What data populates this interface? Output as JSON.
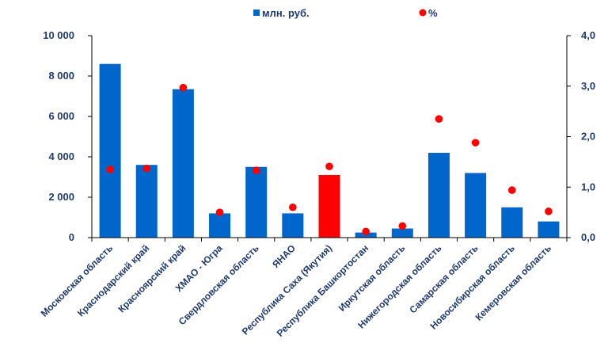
{
  "chart_data": {
    "type": "bar",
    "categories": [
      "Московская область",
      "Краснодарский край",
      "Красноярский край",
      "ХМАО - Югра",
      "Свердловская область",
      "ЯНАО",
      "Республика Саха (Якутия)",
      "Республика Башкортостан",
      "Иркутская область",
      "Нижегородская область",
      "Самарская область",
      "Новосибирская область",
      "Кемеровская область"
    ],
    "series": [
      {
        "name": "млн. руб.",
        "type": "bar",
        "axis": "left",
        "color": "#0066cc",
        "highlight_color": "#ff0000",
        "highlight_index": 6,
        "values": [
          8600,
          3600,
          7350,
          1200,
          3500,
          1200,
          3100,
          250,
          450,
          4200,
          3200,
          1500,
          800
        ]
      },
      {
        "name": "%",
        "type": "scatter",
        "axis": "right",
        "color": "#ff0000",
        "values": [
          1.35,
          1.37,
          2.97,
          0.5,
          1.33,
          0.6,
          1.41,
          0.12,
          0.23,
          2.35,
          1.88,
          0.94,
          0.52
        ]
      }
    ],
    "y_left": {
      "lim": [
        0,
        10000
      ],
      "ticks": [
        0,
        2000,
        4000,
        6000,
        8000,
        10000
      ],
      "tick_labels": [
        "0",
        "2 000",
        "4 000",
        "6 000",
        "8 000",
        "10 000"
      ]
    },
    "y_right": {
      "lim": [
        0,
        4
      ],
      "ticks": [
        0,
        1,
        2,
        3,
        4
      ],
      "tick_labels": [
        "0,0",
        "1,0",
        "2,0",
        "3,0",
        "4,0"
      ]
    },
    "legend": {
      "position": "top-center",
      "items": [
        {
          "label": "млн. руб.",
          "marker": "square",
          "color": "#0066cc"
        },
        {
          "label": "%",
          "marker": "circle",
          "color": "#ff0000"
        }
      ]
    },
    "grid": false
  }
}
